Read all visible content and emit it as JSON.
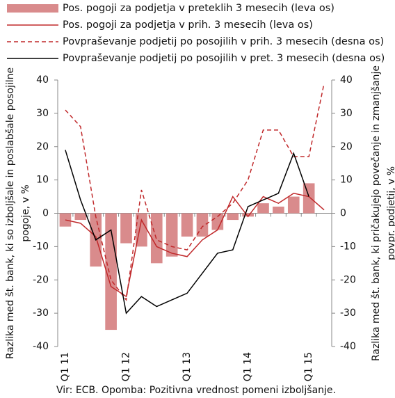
{
  "chart_data": {
    "type": "combo",
    "categories": [
      "Q1 11",
      null,
      null,
      null,
      "Q1 12",
      null,
      null,
      null,
      "Q1 13",
      null,
      null,
      null,
      "Q1 14",
      null,
      null,
      null,
      "Q1 15",
      null
    ],
    "series": [
      {
        "name": "Pos. pogoji za podjetja v preteklih 3 mesecih (leva os)",
        "type": "bar",
        "color": "#d98b8c",
        "values": [
          -4,
          -2,
          -16,
          -35,
          -9,
          -10,
          -15,
          -13,
          -7,
          -7,
          -5,
          -2,
          -1,
          3,
          2,
          5,
          9,
          null
        ]
      },
      {
        "name": "Pos. pogoji za podjetja v prih. 3 mesecih (leva os)",
        "type": "line",
        "color": "#c0282a",
        "values": [
          -2,
          -3,
          -7,
          -22,
          -25,
          -2,
          -10,
          -12,
          -13,
          -8,
          -5,
          5,
          -1,
          5,
          3,
          6,
          5,
          1
        ]
      },
      {
        "name": "Povpraševanje podjetij po posojilih v prih. 3 mesecih (desna os)",
        "type": "line",
        "dashed": true,
        "axis": "y2",
        "color": "#c0282a",
        "values": [
          31,
          26,
          -1,
          -20,
          -26,
          7,
          -8,
          -10,
          -11,
          -4,
          -1,
          3,
          10,
          25,
          25,
          17,
          17,
          39
        ]
      },
      {
        "name": "Povpraševanje podjetij po posojilih v pret. 3 mesecih (desna os)",
        "type": "line",
        "axis": "y2",
        "color": "#000000",
        "values": [
          19,
          4,
          -8,
          -5,
          -30,
          -25,
          -28,
          -26,
          -24,
          -18,
          -12,
          -11,
          2,
          4,
          6,
          18,
          5,
          null
        ]
      }
    ],
    "ylim": [
      -40,
      40
    ],
    "yticks": [
      -40,
      -30,
      -20,
      -10,
      0,
      10,
      20,
      30,
      40
    ],
    "y2lim": [
      -40,
      40
    ],
    "y2ticks": [
      -40,
      -30,
      -20,
      -10,
      0,
      10,
      20,
      30,
      40
    ],
    "ylabel": [
      "Razlika med št. bank, ki so izboljšale in poslabšale posojilne",
      "pogoje, v %"
    ],
    "y2label": [
      "Razlika med št. bank, ki pričakujejo povečanje in zmanjšanje",
      "povpr. podjetij, v %"
    ],
    "note": "Vir: ECB. Opomba: Pozitivna vrednost pomeni izboljšanje."
  }
}
